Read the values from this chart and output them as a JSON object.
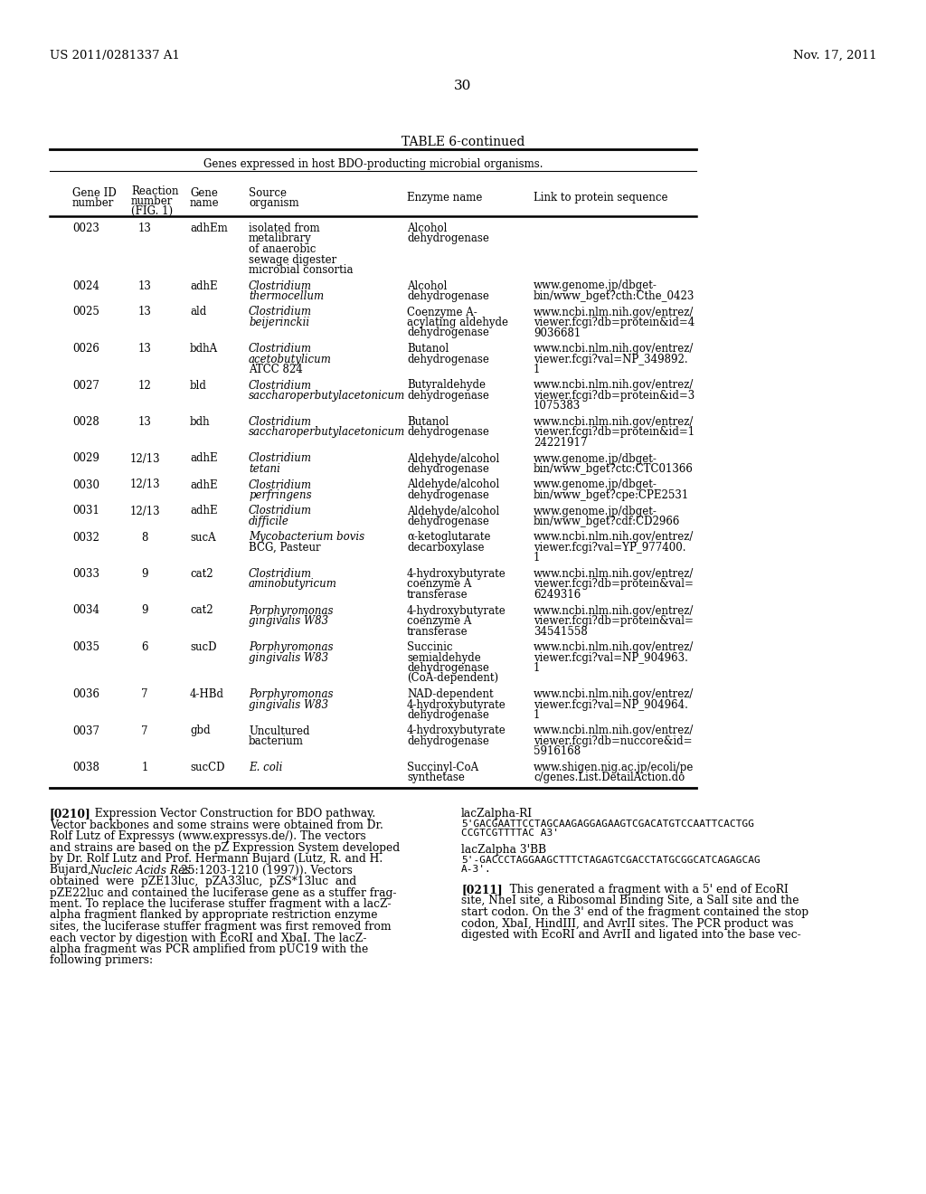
{
  "bg_color": "#ffffff",
  "header_left": "US 2011/0281337 A1",
  "header_right": "Nov. 17, 2011",
  "page_number": "30",
  "table_title": "TABLE 6-continued",
  "table_subtitle": "Genes expressed in host BDO-producting microbial organisms.",
  "rows": [
    {
      "gene_id": "0023",
      "reaction": "13",
      "gene": "adhEm",
      "source": [
        "isolated from",
        "metalibrary",
        "of anaerobic",
        "sewage digester",
        "microbial consortia"
      ],
      "source_italic": [
        false,
        false,
        false,
        false,
        false
      ],
      "enzyme": [
        "Alcohol",
        "dehydrogenase"
      ],
      "link": []
    },
    {
      "gene_id": "0024",
      "reaction": "13",
      "gene": "adhE",
      "source": [
        "Clostridium",
        "thermocellum"
      ],
      "source_italic": [
        true,
        true
      ],
      "enzyme": [
        "Alcohol",
        "dehydrogenase"
      ],
      "link": [
        "www.genome.jp/dbget-",
        "bin/www_bget?cth:Cthe_0423"
      ]
    },
    {
      "gene_id": "0025",
      "reaction": "13",
      "gene": "ald",
      "source": [
        "Clostridium",
        "beijerinckii"
      ],
      "source_italic": [
        true,
        true
      ],
      "enzyme": [
        "Coenzyme A-",
        "acylating aldehyde",
        "dehydrogenase"
      ],
      "link": [
        "www.ncbi.nlm.nih.gov/entrez/",
        "viewer.fcgi?db=protein&id=4",
        "9036681"
      ]
    },
    {
      "gene_id": "0026",
      "reaction": "13",
      "gene": "bdhA",
      "source": [
        "Clostridium",
        "acetobutylicum",
        "ATCC 824"
      ],
      "source_italic": [
        true,
        true,
        false
      ],
      "enzyme": [
        "Butanol",
        "dehydrogenase"
      ],
      "link": [
        "www.ncbi.nlm.nih.gov/entrez/",
        "viewer.fcgi?val=NP_349892.",
        "1"
      ]
    },
    {
      "gene_id": "0027",
      "reaction": "12",
      "gene": "bld",
      "source": [
        "Clostridium",
        "saccharoperbutylacetonicum"
      ],
      "source_italic": [
        true,
        true
      ],
      "enzyme": [
        "Butyraldehyde",
        "dehydrogenase"
      ],
      "link": [
        "www.ncbi.nlm.nih.gov/entrez/",
        "viewer.fcgi?db=protein&id=3",
        "1075383"
      ]
    },
    {
      "gene_id": "0028",
      "reaction": "13",
      "gene": "bdh",
      "source": [
        "Clostridium",
        "saccharoperbutylacetonicum"
      ],
      "source_italic": [
        true,
        true
      ],
      "enzyme": [
        "Butanol",
        "dehydrogenase"
      ],
      "link": [
        "www.ncbi.nlm.nih.gov/entrez/",
        "viewer.fcgi?db=protein&id=1",
        "24221917"
      ]
    },
    {
      "gene_id": "0029",
      "reaction": "12/13",
      "gene": "adhE",
      "source": [
        "Clostridium",
        "tetani"
      ],
      "source_italic": [
        true,
        true
      ],
      "enzyme": [
        "Aldehyde/alcohol",
        "dehydrogenase"
      ],
      "link": [
        "www.genome.jp/dbget-",
        "bin/www_bget?ctc:CTC01366"
      ]
    },
    {
      "gene_id": "0030",
      "reaction": "12/13",
      "gene": "adhE",
      "source": [
        "Clostridium",
        "perfringens"
      ],
      "source_italic": [
        true,
        true
      ],
      "enzyme": [
        "Aldehyde/alcohol",
        "dehydrogenase"
      ],
      "link": [
        "www.genome.jp/dbget-",
        "bin/www_bget?cpe:CPE2531"
      ]
    },
    {
      "gene_id": "0031",
      "reaction": "12/13",
      "gene": "adhE",
      "source": [
        "Clostridium",
        "difficile"
      ],
      "source_italic": [
        true,
        true
      ],
      "enzyme": [
        "Aldehyde/alcohol",
        "dehydrogenase"
      ],
      "link": [
        "www.genome.jp/dbget-",
        "bin/www_bget?cdf:CD2966"
      ]
    },
    {
      "gene_id": "0032",
      "reaction": "8",
      "gene": "sucA",
      "source": [
        "Mycobacterium bovis",
        "BCG, Pasteur"
      ],
      "source_italic": [
        true,
        false
      ],
      "enzyme": [
        "α-ketoglutarate",
        "decarboxylase"
      ],
      "link": [
        "www.ncbi.nlm.nih.gov/entrez/",
        "viewer.fcgi?val=YP_977400.",
        "1"
      ]
    },
    {
      "gene_id": "0033",
      "reaction": "9",
      "gene": "cat2",
      "source": [
        "Clostridium",
        "aminobutyricum"
      ],
      "source_italic": [
        true,
        true
      ],
      "enzyme": [
        "4-hydroxybutyrate",
        "coenzyme A",
        "transferase"
      ],
      "link": [
        "www.ncbi.nlm.nih.gov/entrez/",
        "viewer.fcgi?db=protein&val=",
        "6249316"
      ]
    },
    {
      "gene_id": "0034",
      "reaction": "9",
      "gene": "cat2",
      "source": [
        "Porphyromonas",
        "gingivalis W83"
      ],
      "source_italic": [
        true,
        true
      ],
      "enzyme": [
        "4-hydroxybutyrate",
        "coenzyme A",
        "transferase"
      ],
      "link": [
        "www.ncbi.nlm.nih.gov/entrez/",
        "viewer.fcgi?db=protein&val=",
        "34541558"
      ]
    },
    {
      "gene_id": "0035",
      "reaction": "6",
      "gene": "sucD",
      "source": [
        "Porphyromonas",
        "gingivalis W83"
      ],
      "source_italic": [
        true,
        true
      ],
      "enzyme": [
        "Succinic",
        "semialdehyde",
        "dehydrogenase",
        "(CoA-dependent)"
      ],
      "link": [
        "www.ncbi.nlm.nih.gov/entrez/",
        "viewer.fcgi?val=NP_904963.",
        "1"
      ]
    },
    {
      "gene_id": "0036",
      "reaction": "7",
      "gene": "4-HBd",
      "source": [
        "Porphyromonas",
        "gingivalis W83"
      ],
      "source_italic": [
        true,
        true
      ],
      "enzyme": [
        "NAD-dependent",
        "4-hydroxybutyrate",
        "dehydrogenase"
      ],
      "link": [
        "www.ncbi.nlm.nih.gov/entrez/",
        "viewer.fcgi?val=NP_904964.",
        "1"
      ]
    },
    {
      "gene_id": "0037",
      "reaction": "7",
      "gene": "gbd",
      "source": [
        "Uncultured",
        "bacterium"
      ],
      "source_italic": [
        false,
        false
      ],
      "enzyme": [
        "4-hydroxybutyrate",
        "dehydrogenase"
      ],
      "link": [
        "www.ncbi.nlm.nih.gov/entrez/",
        "viewer.fcgi?db=nuccore&id=",
        "5916168"
      ]
    },
    {
      "gene_id": "0038",
      "reaction": "1",
      "gene": "sucCD",
      "source": [
        "E. coli"
      ],
      "source_italic": [
        true
      ],
      "enzyme": [
        "Succinyl-CoA",
        "synthetase"
      ],
      "link": [
        "www.shigen.nig.ac.jp/ecoli/pe",
        "c/genes.List.DetailAction.do"
      ]
    }
  ],
  "left_para_lines": [
    {
      "text": "[0210]",
      "bold": true,
      "indent": 0
    },
    {
      "text": "   Expression Vector Construction for BDO pathway.",
      "bold": false,
      "indent": 0,
      "same_line": true
    },
    {
      "text": "Vector backbones and some strains were obtained from Dr.",
      "bold": false,
      "indent": 0
    },
    {
      "text": "Rolf Lutz of Expressys (www.expressys.de/). The vectors",
      "bold": false,
      "indent": 0
    },
    {
      "text": "and strains are based on the pZ Expression System developed",
      "bold": false,
      "indent": 0
    },
    {
      "text": "by Dr. Rolf Lutz and Prof. Hermann Bujard (Lutz, R. and H.",
      "bold": false,
      "indent": 0
    },
    {
      "text": "Bujard, ",
      "bold": false,
      "indent": 0,
      "continue": true
    },
    {
      "text": "Nucleic Acids Res",
      "bold": false,
      "italic": true,
      "indent": 0,
      "continue": true
    },
    {
      "text": " 25:1203-1210 (1997)). Vectors",
      "bold": false,
      "indent": 0,
      "end_continue": true
    },
    {
      "text": "obtained  were  pZE13luc,  pZA33luc,  pZS*13luc  and",
      "bold": false,
      "indent": 0
    },
    {
      "text": "pZE22luc and contained the luciferase gene as a stuffer frag-",
      "bold": false,
      "indent": 0
    },
    {
      "text": "ment. To replace the luciferase stuffer fragment with a lacZ-",
      "bold": false,
      "indent": 0
    },
    {
      "text": "alpha fragment flanked by appropriate restriction enzyme",
      "bold": false,
      "indent": 0
    },
    {
      "text": "sites, the luciferase stuffer fragment was first removed from",
      "bold": false,
      "indent": 0
    },
    {
      "text": "each vector by digestion with EcoRI and XbaI. The lacZ-",
      "bold": false,
      "indent": 0
    },
    {
      "text": "alpha fragment was PCR amplified from pUC19 with the",
      "bold": false,
      "indent": 0
    },
    {
      "text": "following primers:",
      "bold": false,
      "indent": 0
    }
  ],
  "code_label1": "lacZalpha-RI",
  "code_seq1": [
    "5'GACGAATTCCTAGCAAGAGGAGAAGTCGACATGTCCAATTCACTGG",
    "CCGTCGTTTTAC A3'"
  ],
  "code_label2": "lacZalpha 3'BB",
  "code_seq2": [
    "5'-GACCCTAGGAAGCTTTCTAGAGTCGACCTATGCGGCATCAGAGCAG",
    "A-3'."
  ],
  "right_para_lines": [
    "[0211]   This generated a fragment with a 5' end of EcoRI",
    "site, NheI site, a Ribosomal Binding Site, a SalI site and the",
    "start codon. On the 3' end of the fragment contained the stop",
    "codon, XbaI, HindIII, and AvrII sites. The PCR product was",
    "digested with EcoRI and AvrII and ligated into the base vec-"
  ]
}
